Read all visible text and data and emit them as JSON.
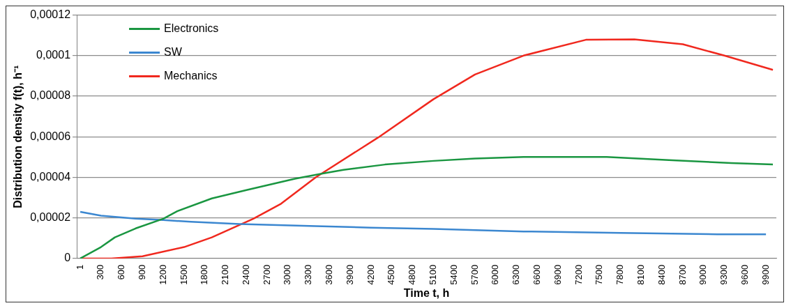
{
  "chart_data": {
    "type": "line",
    "xlabel": "Time t, h",
    "ylabel": "Distribution density f(t), h⁻¹",
    "xlim": [
      -50,
      10050
    ],
    "xticks": [
      1,
      300,
      600,
      900,
      1200,
      1500,
      1800,
      2100,
      2400,
      2700,
      3000,
      3300,
      3600,
      3900,
      4200,
      4500,
      4800,
      5100,
      5400,
      5700,
      6000,
      6300,
      6600,
      6900,
      7200,
      7500,
      7800,
      8100,
      8400,
      8700,
      9000,
      9300,
      9600,
      9900
    ],
    "ylim": [
      0,
      0.00012
    ],
    "yticks": [
      0,
      {
        "value": 2e-05,
        "label": "0,00002"
      },
      {
        "value": 4e-05,
        "label": "0,00004"
      },
      {
        "value": 6e-05,
        "label": "0,00006"
      },
      {
        "value": 8e-05,
        "label": "0,00008"
      },
      {
        "value": 0.0001,
        "label": "0,0001"
      },
      {
        "value": 0.00012,
        "label": "0,00012"
      }
    ],
    "grid": "y",
    "legend": "top left",
    "marker": "none",
    "line_style": "solid",
    "series": [
      {
        "name": "Electronics",
        "color": "#1a9641",
        "x": [
          1,
          300,
          500,
          800,
          1200,
          1400,
          1900,
          2400,
          3100,
          3500,
          3800,
          4400,
          5100,
          5700,
          6400,
          7600,
          8500,
          9400,
          10000
        ],
        "values": [
          0,
          5.6e-06,
          1.04e-05,
          1.48e-05,
          1.96e-05,
          2.33e-05,
          2.96e-05,
          3.37e-05,
          3.93e-05,
          4.19e-05,
          4.37e-05,
          4.63e-05,
          4.81e-05,
          4.93e-05,
          5e-05,
          5e-05,
          4.85e-05,
          4.7e-05,
          4.63e-05
        ]
      },
      {
        "name": "SW",
        "color": "#3b87d0",
        "x": [
          1,
          300,
          800,
          1200,
          1600,
          2300,
          3400,
          4200,
          5100,
          6400,
          7800,
          9200,
          9900
        ],
        "values": [
          2.3e-05,
          2.11e-05,
          1.96e-05,
          1.89e-05,
          1.81e-05,
          1.7e-05,
          1.59e-05,
          1.52e-05,
          1.46e-05,
          1.33e-05,
          1.26e-05,
          1.19e-05,
          1.19e-05
        ]
      },
      {
        "name": "Mechanics",
        "color": "#f0281e",
        "x": [
          1,
          450,
          900,
          1500,
          1900,
          2500,
          2900,
          3400,
          4300,
          5100,
          5700,
          6400,
          7300,
          8000,
          8700,
          9300,
          10000
        ],
        "values": [
          0,
          0,
          1.1e-06,
          5.6e-06,
          1.04e-05,
          1.96e-05,
          2.7e-05,
          4e-05,
          5.96e-05,
          7.85e-05,
          9.07e-05,
          0.0001,
          0.0001078,
          0.000108,
          0.0001056,
          0.0001,
          9.3e-05
        ]
      }
    ]
  }
}
